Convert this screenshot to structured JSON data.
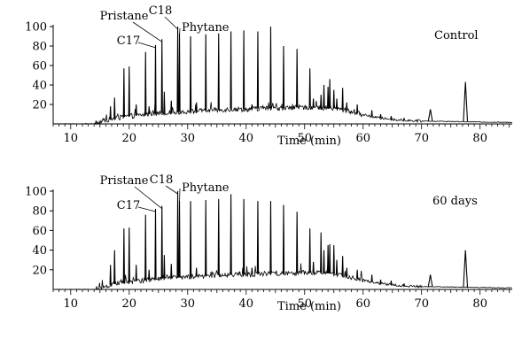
{
  "chart_data": [
    {
      "type": "line",
      "title": "Control",
      "xlabel": "Time (min)",
      "ylabel": "",
      "xlim": [
        7,
        85.5
      ],
      "ylim": [
        0,
        100
      ],
      "x_ticks": [
        10,
        20,
        30,
        40,
        50,
        60,
        70,
        80
      ],
      "y_ticks": [
        20,
        40,
        60,
        80,
        100
      ],
      "series": [
        {
          "peaks": [
            {
              "x": 16.8,
              "y": 18
            },
            {
              "x": 17.5,
              "y": 27
            },
            {
              "x": 19.1,
              "y": 57
            },
            {
              "x": 20.0,
              "y": 59
            },
            {
              "x": 21.2,
              "y": 20
            },
            {
              "x": 22.8,
              "y": 74
            },
            {
              "x": 23.4,
              "y": 18
            },
            {
              "x": 24.5,
              "y": 81
            },
            {
              "x": 25.6,
              "y": 87
            },
            {
              "x": 26.0,
              "y": 33
            },
            {
              "x": 27.2,
              "y": 24
            },
            {
              "x": 28.3,
              "y": 100
            },
            {
              "x": 28.6,
              "y": 93
            },
            {
              "x": 30.5,
              "y": 90
            },
            {
              "x": 31.5,
              "y": 22
            },
            {
              "x": 33.1,
              "y": 92
            },
            {
              "x": 35.3,
              "y": 93
            },
            {
              "x": 37.4,
              "y": 95
            },
            {
              "x": 39.6,
              "y": 96
            },
            {
              "x": 41.0,
              "y": 20
            },
            {
              "x": 42.0,
              "y": 95
            },
            {
              "x": 44.2,
              "y": 100
            },
            {
              "x": 46.4,
              "y": 80
            },
            {
              "x": 48.7,
              "y": 77
            },
            {
              "x": 50.9,
              "y": 57
            },
            {
              "x": 51.5,
              "y": 26
            },
            {
              "x": 52.8,
              "y": 30
            },
            {
              "x": 53.3,
              "y": 40
            },
            {
              "x": 54.0,
              "y": 38
            },
            {
              "x": 54.3,
              "y": 46
            },
            {
              "x": 55.0,
              "y": 35
            },
            {
              "x": 55.5,
              "y": 26
            },
            {
              "x": 56.5,
              "y": 37
            },
            {
              "x": 57.2,
              "y": 22
            },
            {
              "x": 59.0,
              "y": 20
            },
            {
              "x": 61.5,
              "y": 14
            },
            {
              "x": 63.0,
              "y": 10
            },
            {
              "x": 64.8,
              "y": 8
            },
            {
              "x": 67.0,
              "y": 6
            },
            {
              "x": 71.5,
              "y": 15
            },
            {
              "x": 77.5,
              "y": 43
            }
          ],
          "baseline": [
            [
              14,
              0
            ],
            [
              16,
              4
            ],
            [
              18,
              6
            ],
            [
              20,
              8
            ],
            [
              22,
              9
            ],
            [
              25,
              11
            ],
            [
              28,
              12
            ],
            [
              31,
              13
            ],
            [
              34,
              14
            ],
            [
              37,
              15
            ],
            [
              40,
              15
            ],
            [
              43,
              16
            ],
            [
              46,
              16
            ],
            [
              49,
              17
            ],
            [
              52,
              17
            ],
            [
              55,
              16
            ],
            [
              57,
              14
            ],
            [
              59,
              11
            ],
            [
              61,
              8
            ],
            [
              63,
              6
            ],
            [
              66,
              4
            ],
            [
              70,
              3
            ],
            [
              75,
              2.5
            ],
            [
              80,
              2
            ],
            [
              85.5,
              1.5
            ]
          ]
        }
      ],
      "annotations": [
        {
          "text": "Pristane",
          "x": 25.6,
          "y": 87
        },
        {
          "text": "C18",
          "x": 28.3,
          "y": 100
        },
        {
          "text": "C17",
          "x": 24.5,
          "y": 81
        },
        {
          "text": "Phytane",
          "x": 28.6,
          "y": 93
        }
      ]
    },
    {
      "type": "line",
      "title": "60 days",
      "xlabel": "Time (min)",
      "ylabel": "",
      "xlim": [
        7,
        85.5
      ],
      "ylim": [
        0,
        100
      ],
      "x_ticks": [
        10,
        20,
        30,
        40,
        50,
        60,
        70,
        80
      ],
      "y_ticks": [
        20,
        40,
        60,
        80,
        100
      ],
      "series": [
        {
          "peaks": [
            {
              "x": 16.8,
              "y": 25
            },
            {
              "x": 17.5,
              "y": 40
            },
            {
              "x": 19.1,
              "y": 62
            },
            {
              "x": 20.0,
              "y": 63
            },
            {
              "x": 21.2,
              "y": 25
            },
            {
              "x": 22.8,
              "y": 76
            },
            {
              "x": 23.4,
              "y": 20
            },
            {
              "x": 24.5,
              "y": 82
            },
            {
              "x": 25.6,
              "y": 85
            },
            {
              "x": 26.0,
              "y": 35
            },
            {
              "x": 27.2,
              "y": 26
            },
            {
              "x": 28.3,
              "y": 100
            },
            {
              "x": 28.6,
              "y": 90
            },
            {
              "x": 30.5,
              "y": 90
            },
            {
              "x": 31.5,
              "y": 22
            },
            {
              "x": 33.1,
              "y": 91
            },
            {
              "x": 35.3,
              "y": 92
            },
            {
              "x": 37.4,
              "y": 97
            },
            {
              "x": 39.6,
              "y": 92
            },
            {
              "x": 41.0,
              "y": 22
            },
            {
              "x": 42.0,
              "y": 90
            },
            {
              "x": 44.2,
              "y": 90
            },
            {
              "x": 46.4,
              "y": 86
            },
            {
              "x": 48.7,
              "y": 79
            },
            {
              "x": 50.9,
              "y": 62
            },
            {
              "x": 51.5,
              "y": 28
            },
            {
              "x": 52.8,
              "y": 58
            },
            {
              "x": 53.3,
              "y": 40
            },
            {
              "x": 54.0,
              "y": 45
            },
            {
              "x": 54.3,
              "y": 46
            },
            {
              "x": 55.0,
              "y": 45
            },
            {
              "x": 55.5,
              "y": 30
            },
            {
              "x": 56.5,
              "y": 34
            },
            {
              "x": 57.2,
              "y": 22
            },
            {
              "x": 59.0,
              "y": 20
            },
            {
              "x": 61.5,
              "y": 15
            },
            {
              "x": 63.0,
              "y": 10
            },
            {
              "x": 64.8,
              "y": 9
            },
            {
              "x": 67.0,
              "y": 6
            },
            {
              "x": 71.5,
              "y": 15
            },
            {
              "x": 77.5,
              "y": 40
            }
          ],
          "baseline": [
            [
              14,
              0
            ],
            [
              16,
              4
            ],
            [
              18,
              6
            ],
            [
              20,
              8
            ],
            [
              22,
              9
            ],
            [
              25,
              11
            ],
            [
              28,
              12
            ],
            [
              31,
              13
            ],
            [
              34,
              14
            ],
            [
              37,
              15
            ],
            [
              40,
              15
            ],
            [
              43,
              16
            ],
            [
              46,
              16
            ],
            [
              49,
              17
            ],
            [
              52,
              17
            ],
            [
              55,
              16
            ],
            [
              57,
              14
            ],
            [
              59,
              11
            ],
            [
              61,
              8
            ],
            [
              63,
              6
            ],
            [
              66,
              4
            ],
            [
              70,
              3
            ],
            [
              75,
              2.5
            ],
            [
              80,
              2
            ],
            [
              85.5,
              1.5
            ]
          ]
        }
      ],
      "annotations": [
        {
          "text": "Pristane",
          "x": 25.6,
          "y": 85
        },
        {
          "text": "C18",
          "x": 28.3,
          "y": 100
        },
        {
          "text": "C17",
          "x": 24.5,
          "y": 82
        },
        {
          "text": "Phytane",
          "x": 28.6,
          "y": 90
        }
      ]
    }
  ]
}
